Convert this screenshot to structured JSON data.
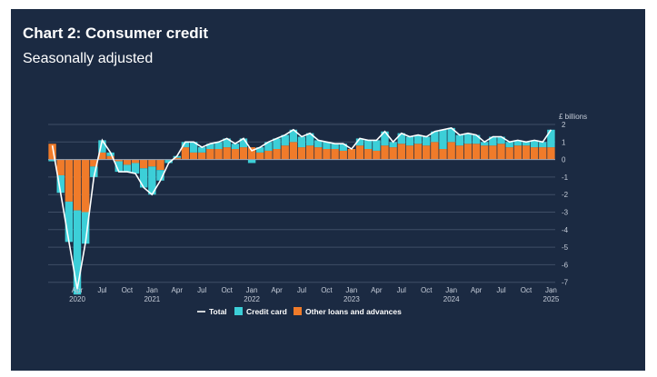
{
  "title": "Chart 2: Consumer credit",
  "subtitle": "Seasonally adjusted",
  "colors": {
    "background": "#1b2a42",
    "credit_card": "#3ccfd8",
    "other_loans": "#f07b2a",
    "total": "#ffffff",
    "grid": "#3f4e66",
    "text": "#c5ccd8"
  },
  "chart_data": {
    "type": "bar",
    "stacked": true,
    "x_labels": [
      "Apr",
      "Jul",
      "Oct",
      "Jan",
      "Apr",
      "Jul",
      "Oct",
      "Jan",
      "Apr",
      "Jul",
      "Oct",
      "Jan",
      "Apr",
      "Jul",
      "Oct",
      "Jan",
      "Apr",
      "Jul",
      "Oct",
      "Jan"
    ],
    "x_years": [
      {
        "label": "2020",
        "month": "Apr"
      },
      {
        "label": "2021",
        "month": "Jan"
      },
      {
        "label": "2022",
        "month": "Jan"
      },
      {
        "label": "2023",
        "month": "Jan"
      },
      {
        "label": "2024",
        "month": "Jan"
      },
      {
        "label": "2025",
        "month": "Jan"
      }
    ],
    "months": [
      "2020-01",
      "2020-02",
      "2020-03",
      "2020-04",
      "2020-05",
      "2020-06",
      "2020-07",
      "2020-08",
      "2020-09",
      "2020-10",
      "2020-11",
      "2020-12",
      "2021-01",
      "2021-02",
      "2021-03",
      "2021-04",
      "2021-05",
      "2021-06",
      "2021-07",
      "2021-08",
      "2021-09",
      "2021-10",
      "2021-11",
      "2021-12",
      "2022-01",
      "2022-02",
      "2022-03",
      "2022-04",
      "2022-05",
      "2022-06",
      "2022-07",
      "2022-08",
      "2022-09",
      "2022-10",
      "2022-11",
      "2022-12",
      "2023-01",
      "2023-02",
      "2023-03",
      "2023-04",
      "2023-05",
      "2023-06",
      "2023-07",
      "2023-08",
      "2023-09",
      "2023-10",
      "2023-11",
      "2023-12",
      "2024-01",
      "2024-02",
      "2024-03",
      "2024-04",
      "2024-05",
      "2024-06",
      "2024-07",
      "2024-08",
      "2024-09",
      "2024-10",
      "2024-11",
      "2024-12",
      "2025-01"
    ],
    "y_unit_label": "£ billions",
    "ylim": [
      -7.5,
      2.2
    ],
    "y_ticks": [
      -7,
      -6,
      -5,
      -4,
      -3,
      -2,
      -1,
      0,
      1,
      2
    ],
    "grid": true,
    "legend_position": "bottom",
    "series": [
      {
        "name": "Credit card",
        "values": [
          -0.1,
          -1.0,
          -2.3,
          -4.8,
          -1.8,
          -0.6,
          0.7,
          0.2,
          -0.6,
          -0.4,
          -0.6,
          -1.1,
          -1.6,
          -0.6,
          -0.2,
          0.1,
          0.3,
          0.6,
          0.3,
          0.3,
          0.4,
          0.5,
          0.3,
          0.5,
          -0.2,
          0.3,
          0.5,
          0.6,
          0.6,
          0.7,
          0.6,
          0.7,
          0.4,
          0.4,
          0.3,
          0.4,
          0.0,
          0.4,
          0.5,
          0.6,
          0.8,
          0.3,
          0.6,
          0.5,
          0.5,
          0.5,
          0.6,
          1.1,
          0.8,
          0.6,
          0.6,
          0.5,
          0.2,
          0.5,
          0.4,
          0.3,
          0.3,
          0.2,
          0.4,
          0.3,
          1.0
        ]
      },
      {
        "name": "Other loans and advances",
        "values": [
          0.9,
          -0.9,
          -2.4,
          -2.9,
          -3.0,
          -0.4,
          0.4,
          0.2,
          -0.1,
          -0.3,
          -0.2,
          -0.5,
          -0.4,
          -0.6,
          0.0,
          0.1,
          0.7,
          0.4,
          0.4,
          0.6,
          0.6,
          0.7,
          0.6,
          0.7,
          0.7,
          0.4,
          0.5,
          0.6,
          0.8,
          1.0,
          0.7,
          0.8,
          0.7,
          0.6,
          0.6,
          0.5,
          0.6,
          0.8,
          0.6,
          0.5,
          0.8,
          0.7,
          0.9,
          0.8,
          0.9,
          0.8,
          1.0,
          0.6,
          1.0,
          0.8,
          0.9,
          0.9,
          0.8,
          0.8,
          0.9,
          0.7,
          0.8,
          0.8,
          0.7,
          0.7,
          0.7
        ]
      },
      {
        "name": "Total",
        "type": "line",
        "values": [
          0.8,
          -1.9,
          -4.7,
          -7.4,
          -4.7,
          -1.0,
          1.1,
          0.4,
          -0.7,
          -0.7,
          -0.8,
          -1.6,
          -2.0,
          -1.2,
          -0.2,
          0.2,
          1.0,
          1.0,
          0.7,
          0.9,
          1.0,
          1.2,
          0.9,
          1.2,
          0.5,
          0.7,
          1.0,
          1.2,
          1.4,
          1.7,
          1.3,
          1.5,
          1.1,
          1.0,
          0.9,
          0.9,
          0.6,
          1.2,
          1.1,
          1.1,
          1.6,
          1.0,
          1.5,
          1.3,
          1.4,
          1.3,
          1.6,
          1.7,
          1.8,
          1.4,
          1.5,
          1.4,
          1.0,
          1.3,
          1.3,
          1.0,
          1.1,
          1.0,
          1.1,
          1.0,
          1.7
        ]
      }
    ]
  }
}
